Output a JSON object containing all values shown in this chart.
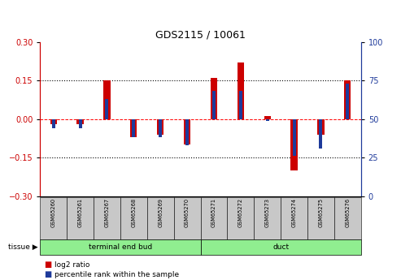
{
  "title": "GDS2115 / 10061",
  "samples": [
    "GSM65260",
    "GSM65261",
    "GSM65267",
    "GSM65268",
    "GSM65269",
    "GSM65270",
    "GSM65271",
    "GSM65272",
    "GSM65273",
    "GSM65274",
    "GSM65275",
    "GSM65276"
  ],
  "log2_ratio": [
    -0.02,
    -0.02,
    0.15,
    -0.07,
    -0.06,
    -0.1,
    0.16,
    0.22,
    0.01,
    -0.2,
    -0.06,
    0.15
  ],
  "percentile_rank": [
    44,
    44,
    63,
    38,
    38,
    33,
    68,
    68,
    49,
    26,
    31,
    73
  ],
  "ylim_left": [
    -0.3,
    0.3
  ],
  "ylim_right": [
    0,
    100
  ],
  "yticks_left": [
    -0.3,
    -0.15,
    0.0,
    0.15,
    0.3
  ],
  "yticks_right": [
    0,
    25,
    50,
    75,
    100
  ],
  "hlines": [
    0.15,
    -0.15
  ],
  "red_color": "#CC0000",
  "blue_color": "#1E3A9A",
  "bg_color": "#FFFFFF",
  "label_log2": "log2 ratio",
  "label_pct": "percentile rank within the sample",
  "group1_name": "terminal end bud",
  "group2_name": "duct",
  "group_color": "#90EE90",
  "n_group1": 6,
  "n_group2": 6,
  "red_bar_width": 0.25,
  "blue_bar_width": 0.12
}
